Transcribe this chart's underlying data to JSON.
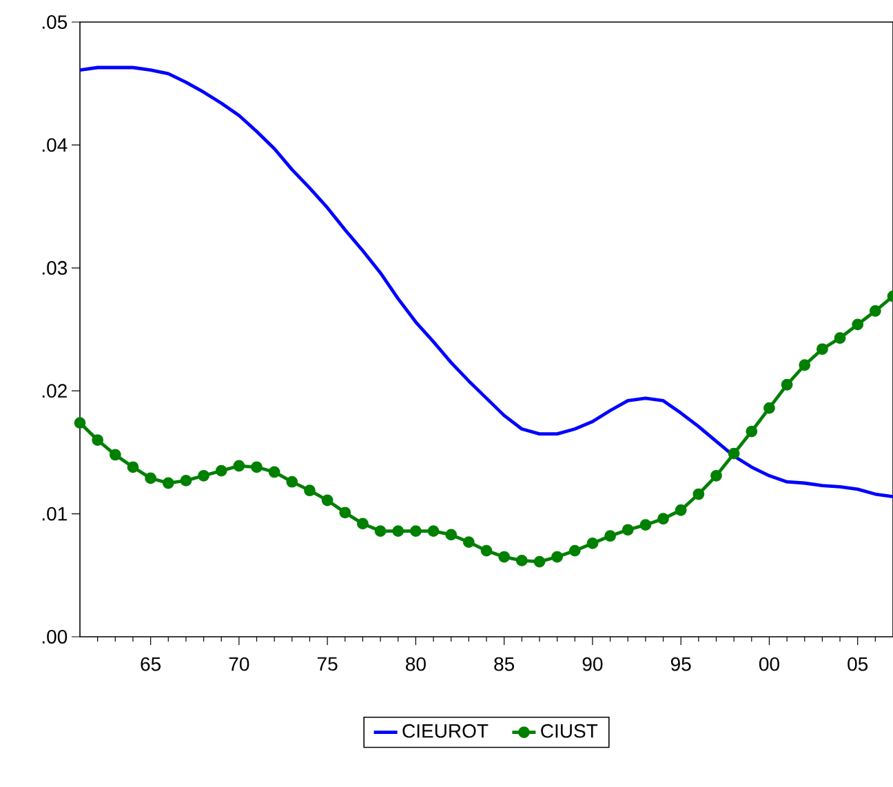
{
  "chart_data": {
    "type": "line",
    "x": [
      1961,
      1962,
      1963,
      1964,
      1965,
      1966,
      1967,
      1968,
      1969,
      1970,
      1971,
      1972,
      1973,
      1974,
      1975,
      1976,
      1977,
      1978,
      1979,
      1980,
      1981,
      1982,
      1983,
      1984,
      1985,
      1986,
      1987,
      1988,
      1989,
      1990,
      1991,
      1992,
      1993,
      1994,
      1995,
      1996,
      1997,
      1998,
      1999,
      2000,
      2001,
      2002,
      2003,
      2004,
      2005,
      2006,
      2007
    ],
    "series": [
      {
        "name": "CIEUROT",
        "color": "#0000ff",
        "marker": "none",
        "values": [
          0.0461,
          0.0463,
          0.0463,
          0.0463,
          0.0461,
          0.0458,
          0.0451,
          0.0443,
          0.0434,
          0.0424,
          0.0411,
          0.0397,
          0.038,
          0.0365,
          0.0349,
          0.0331,
          0.0314,
          0.0296,
          0.0275,
          0.0256,
          0.024,
          0.0223,
          0.0208,
          0.0194,
          0.018,
          0.0169,
          0.0165,
          0.0165,
          0.0169,
          0.0175,
          0.0184,
          0.0192,
          0.0194,
          0.0192,
          0.0182,
          0.0171,
          0.0159,
          0.0147,
          0.0138,
          0.0131,
          0.0126,
          0.0125,
          0.0123,
          0.0122,
          0.012,
          0.0116,
          0.0114
        ]
      },
      {
        "name": "CIUST",
        "color": "#008000",
        "marker": "circle",
        "values": [
          0.0174,
          0.016,
          0.0148,
          0.0138,
          0.0129,
          0.0125,
          0.0127,
          0.0131,
          0.0135,
          0.0139,
          0.0138,
          0.0134,
          0.0126,
          0.0119,
          0.0111,
          0.0101,
          0.0092,
          0.0086,
          0.0086,
          0.0086,
          0.0086,
          0.0083,
          0.0077,
          0.007,
          0.0065,
          0.0062,
          0.0061,
          0.0065,
          0.007,
          0.0076,
          0.0082,
          0.0087,
          0.0091,
          0.0096,
          0.0103,
          0.0116,
          0.0131,
          0.0149,
          0.0167,
          0.0186,
          0.0205,
          0.0221,
          0.0234,
          0.0243,
          0.0254,
          0.0265,
          0.0277
        ]
      }
    ],
    "xlim": [
      1961,
      2007
    ],
    "xticks": [
      {
        "value": 1962,
        "label": null
      },
      {
        "value": 1963,
        "label": null
      },
      {
        "value": 1964,
        "label": null
      },
      {
        "value": 1965,
        "label": "65"
      },
      {
        "value": 1966,
        "label": null
      },
      {
        "value": 1967,
        "label": null
      },
      {
        "value": 1968,
        "label": null
      },
      {
        "value": 1969,
        "label": null
      },
      {
        "value": 1970,
        "label": "70"
      },
      {
        "value": 1971,
        "label": null
      },
      {
        "value": 1972,
        "label": null
      },
      {
        "value": 1973,
        "label": null
      },
      {
        "value": 1974,
        "label": null
      },
      {
        "value": 1975,
        "label": "75"
      },
      {
        "value": 1976,
        "label": null
      },
      {
        "value": 1977,
        "label": null
      },
      {
        "value": 1978,
        "label": null
      },
      {
        "value": 1979,
        "label": null
      },
      {
        "value": 1980,
        "label": "80"
      },
      {
        "value": 1981,
        "label": null
      },
      {
        "value": 1982,
        "label": null
      },
      {
        "value": 1983,
        "label": null
      },
      {
        "value": 1984,
        "label": null
      },
      {
        "value": 1985,
        "label": "85"
      },
      {
        "value": 1986,
        "label": null
      },
      {
        "value": 1987,
        "label": null
      },
      {
        "value": 1988,
        "label": null
      },
      {
        "value": 1989,
        "label": null
      },
      {
        "value": 1990,
        "label": "90"
      },
      {
        "value": 1991,
        "label": null
      },
      {
        "value": 1992,
        "label": null
      },
      {
        "value": 1993,
        "label": null
      },
      {
        "value": 1994,
        "label": null
      },
      {
        "value": 1995,
        "label": "95"
      },
      {
        "value": 1996,
        "label": null
      },
      {
        "value": 1997,
        "label": null
      },
      {
        "value": 1998,
        "label": null
      },
      {
        "value": 1999,
        "label": null
      },
      {
        "value": 2000,
        "label": "00"
      },
      {
        "value": 2001,
        "label": null
      },
      {
        "value": 2002,
        "label": null
      },
      {
        "value": 2003,
        "label": null
      },
      {
        "value": 2004,
        "label": null
      },
      {
        "value": 2005,
        "label": "05"
      },
      {
        "value": 2006,
        "label": null
      }
    ],
    "ylim": [
      0,
      0.05
    ],
    "yticks": [
      {
        "value": 0,
        "label": ".00"
      },
      {
        "value": 0.01,
        "label": ".01"
      },
      {
        "value": 0.02,
        "label": ".02"
      },
      {
        "value": 0.03,
        "label": ".03"
      },
      {
        "value": 0.04,
        "label": ".04"
      },
      {
        "value": 0.05,
        "label": ".05"
      }
    ],
    "grid": false,
    "legend": "bottom",
    "line_style": "solid"
  }
}
